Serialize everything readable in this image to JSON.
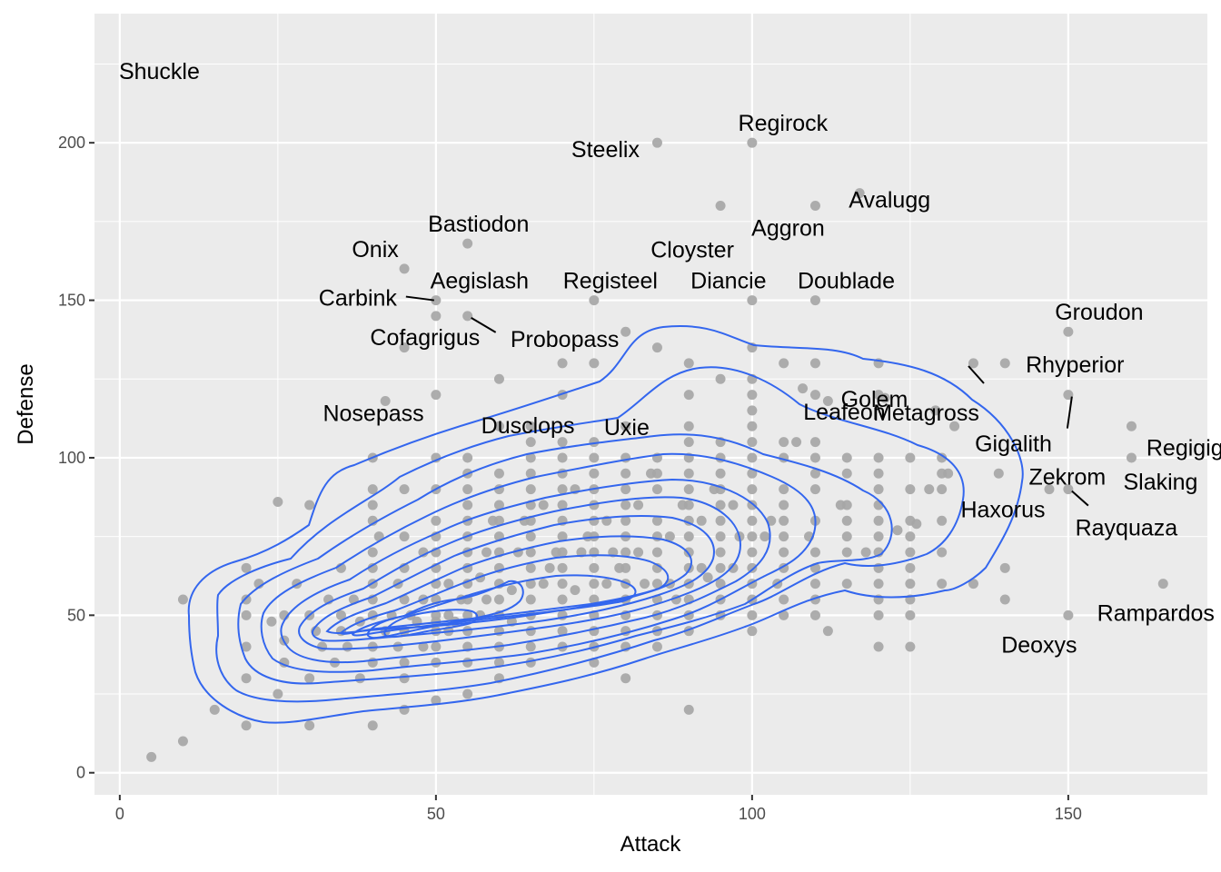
{
  "chart_data": {
    "type": "scatter",
    "title": "",
    "xlabel": "Attack",
    "ylabel": "Defense",
    "xlim": [
      -4,
      172
    ],
    "ylim": [
      -7,
      241
    ],
    "x_ticks": [
      0,
      50,
      100,
      150
    ],
    "y_ticks": [
      0,
      50,
      100,
      150,
      200
    ],
    "grid": true,
    "background": "#ebebeb",
    "point_color": "#a6a6a6",
    "contour_color": "#3366ee",
    "points": [
      [
        5,
        5
      ],
      [
        10,
        10
      ],
      [
        10,
        55
      ],
      [
        15,
        20
      ],
      [
        20,
        15
      ],
      [
        20,
        30
      ],
      [
        20,
        40
      ],
      [
        20,
        50
      ],
      [
        20,
        55
      ],
      [
        20,
        65
      ],
      [
        22,
        60
      ],
      [
        24,
        48
      ],
      [
        25,
        86
      ],
      [
        25,
        25
      ],
      [
        26,
        35
      ],
      [
        26,
        42
      ],
      [
        26,
        50
      ],
      [
        28,
        60
      ],
      [
        30,
        15
      ],
      [
        30,
        30
      ],
      [
        30,
        50
      ],
      [
        30,
        85
      ],
      [
        31,
        45
      ],
      [
        32,
        40
      ],
      [
        33,
        55
      ],
      [
        34,
        35
      ],
      [
        35,
        45
      ],
      [
        35,
        50
      ],
      [
        35,
        65
      ],
      [
        36,
        40
      ],
      [
        37,
        55
      ],
      [
        38,
        30
      ],
      [
        38,
        48
      ],
      [
        40,
        15
      ],
      [
        40,
        35
      ],
      [
        40,
        40
      ],
      [
        40,
        50
      ],
      [
        40,
        55
      ],
      [
        40,
        60
      ],
      [
        40,
        65
      ],
      [
        40,
        70
      ],
      [
        40,
        80
      ],
      [
        40,
        85
      ],
      [
        40,
        90
      ],
      [
        40,
        100
      ],
      [
        41,
        75
      ],
      [
        42,
        118
      ],
      [
        42,
        45
      ],
      [
        43,
        50
      ],
      [
        44,
        40
      ],
      [
        44,
        60
      ],
      [
        45,
        20
      ],
      [
        45,
        30
      ],
      [
        45,
        35
      ],
      [
        45,
        45
      ],
      [
        45,
        55
      ],
      [
        45,
        65
      ],
      [
        45,
        75
      ],
      [
        45,
        90
      ],
      [
        45,
        135
      ],
      [
        45,
        160
      ],
      [
        46,
        50
      ],
      [
        47,
        48
      ],
      [
        48,
        40
      ],
      [
        48,
        55
      ],
      [
        48,
        70
      ],
      [
        50,
        23
      ],
      [
        50,
        35
      ],
      [
        50,
        40
      ],
      [
        50,
        45
      ],
      [
        50,
        48
      ],
      [
        50,
        50
      ],
      [
        50,
        55
      ],
      [
        50,
        60
      ],
      [
        50,
        65
      ],
      [
        50,
        70
      ],
      [
        50,
        75
      ],
      [
        50,
        80
      ],
      [
        50,
        90
      ],
      [
        50,
        100
      ],
      [
        50,
        120
      ],
      [
        50,
        145
      ],
      [
        50,
        150
      ],
      [
        52,
        45
      ],
      [
        52,
        50
      ],
      [
        52,
        60
      ],
      [
        53,
        48
      ],
      [
        54,
        55
      ],
      [
        55,
        25
      ],
      [
        55,
        35
      ],
      [
        55,
        40
      ],
      [
        55,
        45
      ],
      [
        55,
        50
      ],
      [
        55,
        55
      ],
      [
        55,
        60
      ],
      [
        55,
        65
      ],
      [
        55,
        70
      ],
      [
        55,
        75
      ],
      [
        55,
        80
      ],
      [
        55,
        85
      ],
      [
        55,
        90
      ],
      [
        55,
        95
      ],
      [
        55,
        100
      ],
      [
        55,
        145
      ],
      [
        55,
        168
      ],
      [
        57,
        50
      ],
      [
        57,
        62
      ],
      [
        58,
        55
      ],
      [
        58,
        70
      ],
      [
        59,
        80
      ],
      [
        60,
        30
      ],
      [
        60,
        35
      ],
      [
        60,
        40
      ],
      [
        60,
        45
      ],
      [
        60,
        50
      ],
      [
        60,
        55
      ],
      [
        60,
        60
      ],
      [
        60,
        65
      ],
      [
        60,
        70
      ],
      [
        60,
        75
      ],
      [
        60,
        80
      ],
      [
        60,
        85
      ],
      [
        60,
        90
      ],
      [
        60,
        95
      ],
      [
        60,
        110
      ],
      [
        60,
        125
      ],
      [
        62,
        48
      ],
      [
        62,
        58
      ],
      [
        63,
        70
      ],
      [
        64,
        80
      ],
      [
        65,
        35
      ],
      [
        65,
        40
      ],
      [
        65,
        45
      ],
      [
        65,
        50
      ],
      [
        65,
        55
      ],
      [
        65,
        60
      ],
      [
        65,
        65
      ],
      [
        65,
        70
      ],
      [
        65,
        75
      ],
      [
        65,
        80
      ],
      [
        65,
        85
      ],
      [
        65,
        90
      ],
      [
        65,
        95
      ],
      [
        65,
        100
      ],
      [
        65,
        105
      ],
      [
        65,
        110
      ],
      [
        67,
        60
      ],
      [
        67,
        85
      ],
      [
        68,
        65
      ],
      [
        69,
        70
      ],
      [
        70,
        40
      ],
      [
        70,
        45
      ],
      [
        70,
        50
      ],
      [
        70,
        55
      ],
      [
        70,
        60
      ],
      [
        70,
        65
      ],
      [
        70,
        70
      ],
      [
        70,
        75
      ],
      [
        70,
        80
      ],
      [
        70,
        85
      ],
      [
        70,
        90
      ],
      [
        70,
        95
      ],
      [
        70,
        100
      ],
      [
        70,
        105
      ],
      [
        70,
        120
      ],
      [
        70,
        130
      ],
      [
        72,
        58
      ],
      [
        72,
        90
      ],
      [
        73,
        70
      ],
      [
        74,
        75
      ],
      [
        75,
        35
      ],
      [
        75,
        40
      ],
      [
        75,
        45
      ],
      [
        75,
        50
      ],
      [
        75,
        55
      ],
      [
        75,
        60
      ],
      [
        75,
        65
      ],
      [
        75,
        70
      ],
      [
        75,
        75
      ],
      [
        75,
        80
      ],
      [
        75,
        85
      ],
      [
        75,
        90
      ],
      [
        75,
        95
      ],
      [
        75,
        100
      ],
      [
        75,
        105
      ],
      [
        75,
        130
      ],
      [
        75,
        150
      ],
      [
        77,
        60
      ],
      [
        77,
        80
      ],
      [
        78,
        70
      ],
      [
        79,
        65
      ],
      [
        80,
        30
      ],
      [
        80,
        40
      ],
      [
        80,
        45
      ],
      [
        80,
        50
      ],
      [
        80,
        55
      ],
      [
        80,
        60
      ],
      [
        80,
        65
      ],
      [
        80,
        70
      ],
      [
        80,
        75
      ],
      [
        80,
        80
      ],
      [
        80,
        85
      ],
      [
        80,
        90
      ],
      [
        80,
        95
      ],
      [
        80,
        100
      ],
      [
        80,
        110
      ],
      [
        80,
        140
      ],
      [
        82,
        70
      ],
      [
        82,
        85
      ],
      [
        83,
        60
      ],
      [
        84,
        95
      ],
      [
        85,
        40
      ],
      [
        85,
        45
      ],
      [
        85,
        50
      ],
      [
        85,
        55
      ],
      [
        85,
        60
      ],
      [
        85,
        65
      ],
      [
        85,
        70
      ],
      [
        85,
        75
      ],
      [
        85,
        80
      ],
      [
        85,
        90
      ],
      [
        85,
        95
      ],
      [
        85,
        100
      ],
      [
        85,
        135
      ],
      [
        85,
        200
      ],
      [
        87,
        60
      ],
      [
        87,
        75
      ],
      [
        88,
        55
      ],
      [
        89,
        85
      ],
      [
        90,
        20
      ],
      [
        90,
        45
      ],
      [
        90,
        50
      ],
      [
        90,
        55
      ],
      [
        90,
        60
      ],
      [
        90,
        65
      ],
      [
        90,
        70
      ],
      [
        90,
        75
      ],
      [
        90,
        80
      ],
      [
        90,
        85
      ],
      [
        90,
        90
      ],
      [
        90,
        95
      ],
      [
        90,
        100
      ],
      [
        90,
        105
      ],
      [
        90,
        110
      ],
      [
        90,
        120
      ],
      [
        90,
        130
      ],
      [
        92,
        65
      ],
      [
        92,
        80
      ],
      [
        93,
        62
      ],
      [
        94,
        90
      ],
      [
        95,
        50
      ],
      [
        95,
        55
      ],
      [
        95,
        60
      ],
      [
        95,
        65
      ],
      [
        95,
        70
      ],
      [
        95,
        75
      ],
      [
        95,
        80
      ],
      [
        95,
        85
      ],
      [
        95,
        90
      ],
      [
        95,
        95
      ],
      [
        95,
        100
      ],
      [
        95,
        105
      ],
      [
        95,
        125
      ],
      [
        95,
        180
      ],
      [
        97,
        65
      ],
      [
        97,
        85
      ],
      [
        98,
        75
      ],
      [
        100,
        45
      ],
      [
        100,
        50
      ],
      [
        100,
        55
      ],
      [
        100,
        60
      ],
      [
        100,
        65
      ],
      [
        100,
        70
      ],
      [
        100,
        75
      ],
      [
        100,
        80
      ],
      [
        100,
        85
      ],
      [
        100,
        90
      ],
      [
        100,
        95
      ],
      [
        100,
        100
      ],
      [
        100,
        105
      ],
      [
        100,
        110
      ],
      [
        100,
        115
      ],
      [
        100,
        120
      ],
      [
        100,
        125
      ],
      [
        100,
        135
      ],
      [
        100,
        150
      ],
      [
        100,
        200
      ],
      [
        102,
        75
      ],
      [
        103,
        80
      ],
      [
        104,
        60
      ],
      [
        105,
        50
      ],
      [
        105,
        55
      ],
      [
        105,
        65
      ],
      [
        105,
        70
      ],
      [
        105,
        75
      ],
      [
        105,
        80
      ],
      [
        105,
        85
      ],
      [
        105,
        90
      ],
      [
        105,
        100
      ],
      [
        105,
        105
      ],
      [
        105,
        130
      ],
      [
        107,
        105
      ],
      [
        108,
        122
      ],
      [
        109,
        75
      ],
      [
        110,
        50
      ],
      [
        110,
        55
      ],
      [
        110,
        60
      ],
      [
        110,
        65
      ],
      [
        110,
        70
      ],
      [
        110,
        80
      ],
      [
        110,
        90
      ],
      [
        110,
        95
      ],
      [
        110,
        100
      ],
      [
        110,
        105
      ],
      [
        110,
        120
      ],
      [
        110,
        130
      ],
      [
        110,
        150
      ],
      [
        110,
        180
      ],
      [
        112,
        45
      ],
      [
        112,
        118
      ],
      [
        114,
        85
      ],
      [
        115,
        60
      ],
      [
        115,
        70
      ],
      [
        115,
        75
      ],
      [
        115,
        80
      ],
      [
        115,
        85
      ],
      [
        115,
        95
      ],
      [
        115,
        100
      ],
      [
        117,
        184
      ],
      [
        118,
        70
      ],
      [
        120,
        40
      ],
      [
        120,
        50
      ],
      [
        120,
        55
      ],
      [
        120,
        60
      ],
      [
        120,
        65
      ],
      [
        120,
        70
      ],
      [
        120,
        75
      ],
      [
        120,
        80
      ],
      [
        120,
        85
      ],
      [
        120,
        90
      ],
      [
        120,
        95
      ],
      [
        120,
        100
      ],
      [
        120,
        120
      ],
      [
        120,
        130
      ],
      [
        121,
        119
      ],
      [
        123,
        77
      ],
      [
        125,
        40
      ],
      [
        125,
        50
      ],
      [
        125,
        55
      ],
      [
        125,
        60
      ],
      [
        125,
        65
      ],
      [
        125,
        70
      ],
      [
        125,
        75
      ],
      [
        125,
        80
      ],
      [
        125,
        90
      ],
      [
        125,
        100
      ],
      [
        126,
        79
      ],
      [
        128,
        90
      ],
      [
        129,
        115
      ],
      [
        130,
        60
      ],
      [
        130,
        70
      ],
      [
        130,
        80
      ],
      [
        130,
        90
      ],
      [
        130,
        95
      ],
      [
        130,
        100
      ],
      [
        131,
        95
      ],
      [
        132,
        110
      ],
      [
        135,
        60
      ],
      [
        135,
        130
      ],
      [
        139,
        95
      ],
      [
        140,
        55
      ],
      [
        140,
        65
      ],
      [
        140,
        130
      ],
      [
        147,
        90
      ],
      [
        150,
        50
      ],
      [
        150,
        90
      ],
      [
        150,
        120
      ],
      [
        150,
        140
      ],
      [
        160,
        100
      ],
      [
        160,
        110
      ],
      [
        165,
        60
      ]
    ],
    "labels": [
      {
        "name": "Shuckle",
        "x": 10,
        "y": 230
      },
      {
        "name": "Regirock",
        "x": 100,
        "y": 200
      },
      {
        "name": "Steelix",
        "x": 85,
        "y": 200
      },
      {
        "name": "Cloyster",
        "x": 95,
        "y": 180
      },
      {
        "name": "Avalugg",
        "x": 117,
        "y": 184
      },
      {
        "name": "Aggron",
        "x": 110,
        "y": 180
      },
      {
        "name": "Bastiodon",
        "x": 52,
        "y": 168
      },
      {
        "name": "Onix",
        "x": 45,
        "y": 160
      },
      {
        "name": "Aegislash",
        "x": 50,
        "y": 150
      },
      {
        "name": "Registeel",
        "x": 75,
        "y": 150
      },
      {
        "name": "Diancie",
        "x": 100,
        "y": 150
      },
      {
        "name": "Doublade",
        "x": 110,
        "y": 150
      },
      {
        "name": "Carbink",
        "x": 50,
        "y": 150
      },
      {
        "name": "Cofagrigus",
        "x": 50,
        "y": 145
      },
      {
        "name": "Probopass",
        "x": 55,
        "y": 145
      },
      {
        "name": "Groudon",
        "x": 150,
        "y": 140
      },
      {
        "name": "Golem",
        "x": 110,
        "y": 130
      },
      {
        "name": "Rhyperior",
        "x": 140,
        "y": 130
      },
      {
        "name": "Nosepass",
        "x": 45,
        "y": 135
      },
      {
        "name": "Dusclops",
        "x": 70,
        "y": 130
      },
      {
        "name": "Uxie",
        "x": 75,
        "y": 130
      },
      {
        "name": "Leafeon",
        "x": 110,
        "y": 130
      },
      {
        "name": "Metagross",
        "x": 135,
        "y": 130
      },
      {
        "name": "Gigalith",
        "x": 135,
        "y": 130
      },
      {
        "name": "Regigigas",
        "x": 160,
        "y": 110
      },
      {
        "name": "Zekrom",
        "x": 150,
        "y": 120
      },
      {
        "name": "Slaking",
        "x": 160,
        "y": 100
      },
      {
        "name": "Haxorus",
        "x": 147,
        "y": 90
      },
      {
        "name": "Rayquaza",
        "x": 150,
        "y": 90
      },
      {
        "name": "Rampardos",
        "x": 165,
        "y": 60
      },
      {
        "name": "Deoxys",
        "x": 150,
        "y": 50
      }
    ]
  }
}
